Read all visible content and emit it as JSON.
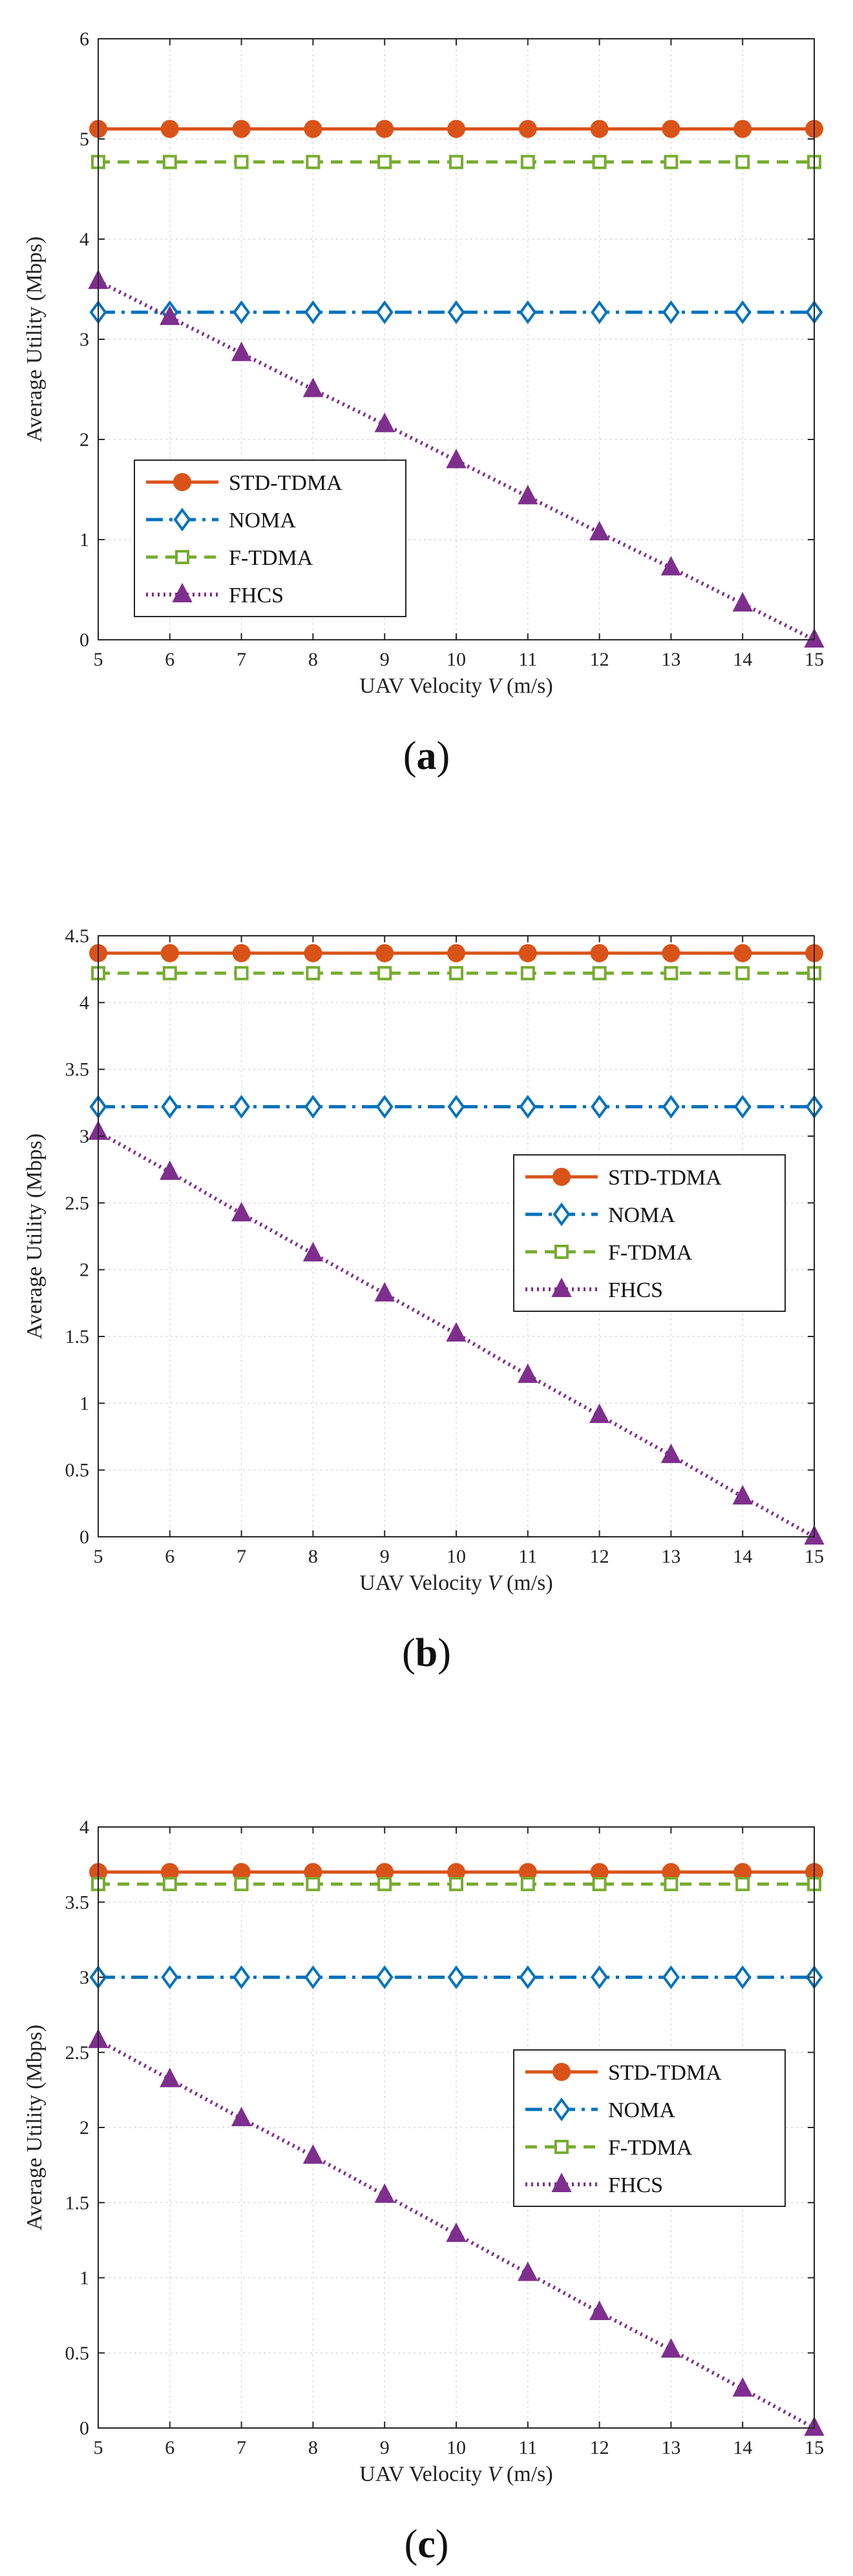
{
  "chart_data": [
    {
      "type": "line",
      "caption": "(a)",
      "caption_letter": "a",
      "xlabel": "UAV Velocity V (m/s)",
      "ylabel": "Average Utility (Mbps)",
      "xlim": [
        5,
        15
      ],
      "ylim": [
        0,
        6
      ],
      "xticks": [
        5,
        6,
        7,
        8,
        9,
        10,
        11,
        12,
        13,
        14,
        15
      ],
      "yticks": [
        0,
        1,
        2,
        3,
        4,
        5,
        6
      ],
      "ytick_labels": [
        "0",
        "1",
        "2",
        "3",
        "4",
        "5",
        "6"
      ],
      "grid": true,
      "legend_position": "lower-left",
      "x": [
        5,
        6,
        7,
        8,
        9,
        10,
        11,
        12,
        13,
        14,
        15
      ],
      "series": [
        {
          "name": "STD-TDMA",
          "color": "#D95319",
          "marker": "circle",
          "line": "solid",
          "values": [
            5.1,
            5.1,
            5.1,
            5.1,
            5.1,
            5.1,
            5.1,
            5.1,
            5.1,
            5.1,
            5.1
          ]
        },
        {
          "name": "NOMA",
          "color": "#0072BD",
          "marker": "diamond",
          "line": "dashdot",
          "values": [
            3.27,
            3.27,
            3.27,
            3.27,
            3.27,
            3.27,
            3.27,
            3.27,
            3.27,
            3.27,
            3.27
          ]
        },
        {
          "name": "F-TDMA",
          "color": "#77AC30",
          "marker": "square",
          "line": "dashed",
          "values": [
            4.77,
            4.77,
            4.77,
            4.77,
            4.77,
            4.77,
            4.77,
            4.77,
            4.77,
            4.77,
            4.77
          ]
        },
        {
          "name": "FHCS",
          "color": "#7E2F8E",
          "marker": "triangle",
          "line": "dotted",
          "values": [
            3.58,
            3.22,
            2.86,
            2.5,
            2.15,
            1.79,
            1.43,
            1.07,
            0.72,
            0.36,
            0.0
          ]
        }
      ]
    },
    {
      "type": "line",
      "caption": "(b)",
      "caption_letter": "b",
      "xlabel": "UAV Velocity V (m/s)",
      "ylabel": "Average Utility (Mbps)",
      "xlim": [
        5,
        15
      ],
      "ylim": [
        0,
        4.5
      ],
      "xticks": [
        5,
        6,
        7,
        8,
        9,
        10,
        11,
        12,
        13,
        14,
        15
      ],
      "yticks": [
        0,
        0.5,
        1,
        1.5,
        2,
        2.5,
        3,
        3.5,
        4,
        4.5
      ],
      "ytick_labels": [
        "0",
        "0.5",
        "1",
        "1.5",
        "2",
        "2.5",
        "3",
        "3.5",
        "4",
        "4.5"
      ],
      "grid": true,
      "legend_position": "right",
      "x": [
        5,
        6,
        7,
        8,
        9,
        10,
        11,
        12,
        13,
        14,
        15
      ],
      "series": [
        {
          "name": "STD-TDMA",
          "color": "#D95319",
          "marker": "circle",
          "line": "solid",
          "values": [
            4.37,
            4.37,
            4.37,
            4.37,
            4.37,
            4.37,
            4.37,
            4.37,
            4.37,
            4.37,
            4.37
          ]
        },
        {
          "name": "NOMA",
          "color": "#0072BD",
          "marker": "diamond",
          "line": "dashdot",
          "values": [
            3.22,
            3.22,
            3.22,
            3.22,
            3.22,
            3.22,
            3.22,
            3.22,
            3.22,
            3.22,
            3.22
          ]
        },
        {
          "name": "F-TDMA",
          "color": "#77AC30",
          "marker": "square",
          "line": "dashed",
          "values": [
            4.22,
            4.22,
            4.22,
            4.22,
            4.22,
            4.22,
            4.22,
            4.22,
            4.22,
            4.22,
            4.22
          ]
        },
        {
          "name": "FHCS",
          "color": "#7E2F8E",
          "marker": "triangle",
          "line": "dotted",
          "values": [
            3.03,
            2.73,
            2.42,
            2.12,
            1.82,
            1.52,
            1.21,
            0.91,
            0.61,
            0.3,
            0.0
          ]
        }
      ]
    },
    {
      "type": "line",
      "caption": "(c)",
      "caption_letter": "c",
      "xlabel": "UAV Velocity V (m/s)",
      "ylabel": "Average Utility (Mbps)",
      "xlim": [
        5,
        15
      ],
      "ylim": [
        0,
        4
      ],
      "xticks": [
        5,
        6,
        7,
        8,
        9,
        10,
        11,
        12,
        13,
        14,
        15
      ],
      "yticks": [
        0,
        0.5,
        1,
        1.5,
        2,
        2.5,
        3,
        3.5,
        4
      ],
      "ytick_labels": [
        "0",
        "0.5",
        "1",
        "1.5",
        "2",
        "2.5",
        "3",
        "3.5",
        "4"
      ],
      "grid": true,
      "legend_position": "right",
      "x": [
        5,
        6,
        7,
        8,
        9,
        10,
        11,
        12,
        13,
        14,
        15
      ],
      "series": [
        {
          "name": "STD-TDMA",
          "color": "#D95319",
          "marker": "circle",
          "line": "solid",
          "values": [
            3.7,
            3.7,
            3.7,
            3.7,
            3.7,
            3.7,
            3.7,
            3.7,
            3.7,
            3.7,
            3.7
          ]
        },
        {
          "name": "NOMA",
          "color": "#0072BD",
          "marker": "diamond",
          "line": "dashdot",
          "values": [
            3.0,
            3.0,
            3.0,
            3.0,
            3.0,
            3.0,
            3.0,
            3.0,
            3.0,
            3.0,
            3.0
          ]
        },
        {
          "name": "F-TDMA",
          "color": "#77AC30",
          "marker": "square",
          "line": "dashed",
          "values": [
            3.62,
            3.62,
            3.62,
            3.62,
            3.62,
            3.62,
            3.62,
            3.62,
            3.62,
            3.62,
            3.62
          ]
        },
        {
          "name": "FHCS",
          "color": "#7E2F8E",
          "marker": "triangle",
          "line": "dotted",
          "values": [
            2.58,
            2.32,
            2.06,
            1.81,
            1.55,
            1.29,
            1.03,
            0.77,
            0.52,
            0.26,
            0.0
          ]
        }
      ]
    }
  ]
}
